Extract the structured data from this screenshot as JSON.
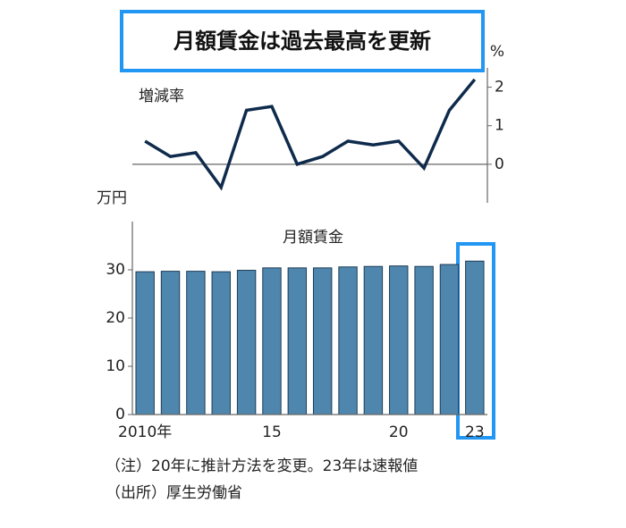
{
  "chart_data": [
    {
      "type": "line",
      "title": "月額賃金は過去最高を更新",
      "unit": "%",
      "label": "増減率",
      "categories": [
        "2010年",
        null,
        null,
        null,
        null,
        "15",
        null,
        null,
        null,
        null,
        "20",
        null,
        null,
        "23"
      ],
      "series": [
        {
          "name": "増減率",
          "color": "#0f2b4c",
          "values": [
            0.6,
            0.2,
            0.3,
            -0.6,
            1.4,
            1.5,
            0.0,
            0.2,
            0.6,
            0.5,
            0.6,
            -0.1,
            1.4,
            2.2
          ]
        }
      ],
      "ylim": [
        -1,
        2.5
      ],
      "yticks": [
        0,
        1,
        2
      ]
    },
    {
      "type": "bar",
      "unit": "万円",
      "label": "月額賃金",
      "categories": [
        "2010年",
        null,
        null,
        null,
        null,
        "15",
        null,
        null,
        null,
        null,
        "20",
        null,
        null,
        "23"
      ],
      "values": [
        29.6,
        29.7,
        29.7,
        29.6,
        29.9,
        30.4,
        30.4,
        30.4,
        30.6,
        30.7,
        30.8,
        30.7,
        31.1,
        31.8
      ],
      "color": "#4f86ad",
      "ylim": [
        0,
        40
      ],
      "yticks": [
        0,
        10,
        20,
        30
      ]
    }
  ],
  "notes": [
    "（注）20年に推計方法を変更。23年は速報値",
    "（出所）厚生労働省"
  ]
}
